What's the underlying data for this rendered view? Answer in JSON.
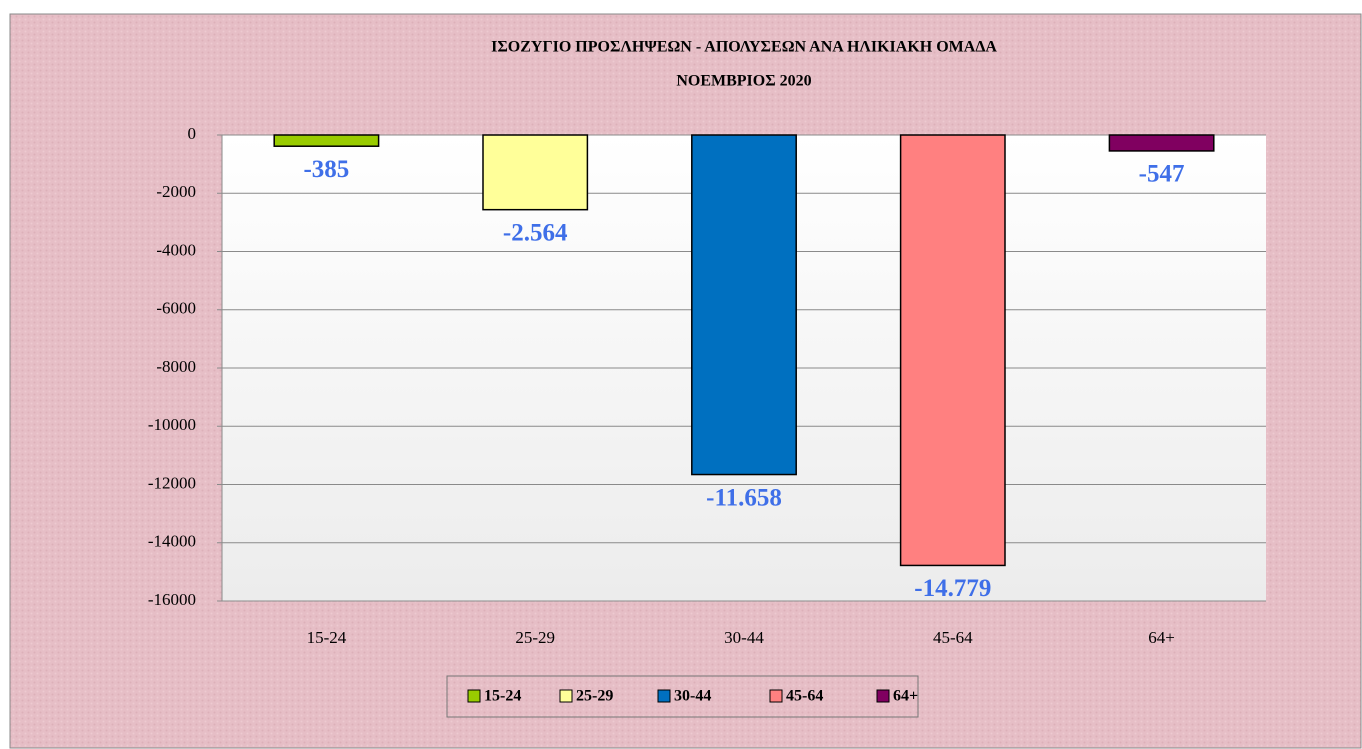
{
  "chart_data": {
    "type": "bar",
    "title": "ΙΣΟΖΥΓΙΟ  ΠΡΟΣΛΗΨΕΩΝ - ΑΠΟΛΥΣΕΩΝ ΑΝΑ ΗΛΙΚΙΑΚΗ ΟΜΑΔΑ",
    "subtitle": "ΝΟΕΜΒΡΙΟΣ  2020",
    "categories": [
      "15-24",
      "25-29",
      "30-44",
      "45-64",
      "64+"
    ],
    "values": [
      -385,
      -2564,
      -11658,
      -14779,
      -547
    ],
    "value_labels": [
      "-385",
      "-2.564",
      "-11.658",
      "-14.779",
      "-547"
    ],
    "colors": [
      "#99cc00",
      "#ffff99",
      "#0070c0",
      "#ff8080",
      "#800060"
    ],
    "ylim": [
      -16000,
      0
    ],
    "yticks": [
      0,
      -2000,
      -4000,
      -6000,
      -8000,
      -10000,
      -12000,
      -14000,
      -16000
    ],
    "grid": true,
    "legend": "bottom"
  }
}
